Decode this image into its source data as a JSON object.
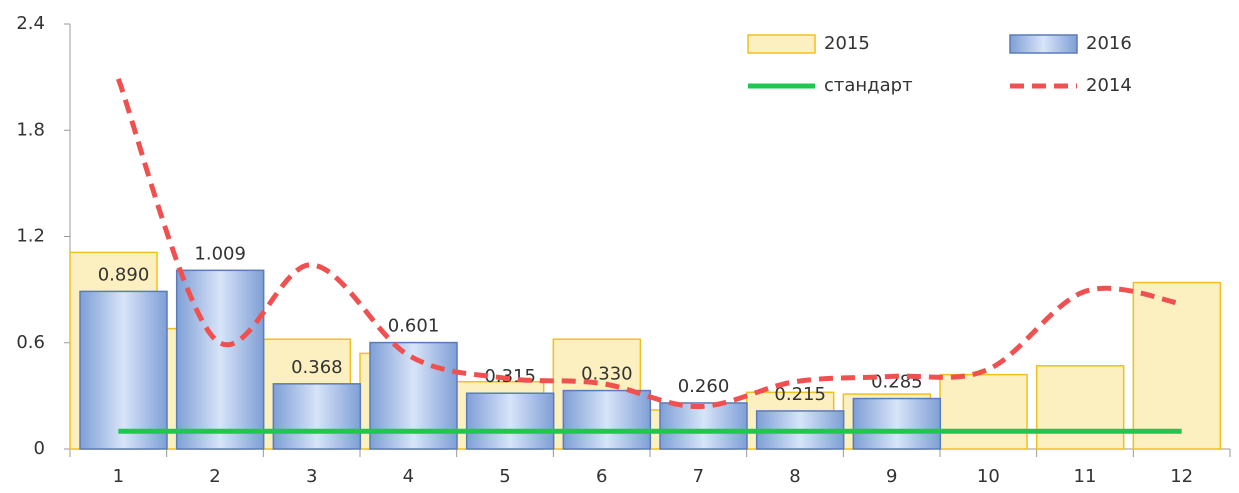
{
  "chart_data": {
    "type": "bar",
    "categories": [
      "1",
      "2",
      "3",
      "4",
      "5",
      "6",
      "7",
      "8",
      "9",
      "10",
      "11",
      "12"
    ],
    "series": [
      {
        "name": "2015",
        "type": "bar",
        "color": "#fdf0c0",
        "edge": "#f0c020",
        "values": [
          1.11,
          0.68,
          0.62,
          0.54,
          0.38,
          0.62,
          0.22,
          0.32,
          0.31,
          0.42,
          0.47,
          0.94
        ]
      },
      {
        "name": "2016",
        "type": "bar",
        "color": "#a9c4ee",
        "edge": "#5a7cb8",
        "values": [
          0.89,
          1.009,
          0.368,
          0.601,
          0.315,
          0.33,
          0.26,
          0.215,
          0.285,
          null,
          null,
          null
        ],
        "value_labels": [
          "0.890",
          "1.009",
          "0.368",
          "0.601",
          "0.315",
          "0.330",
          "0.260",
          "0.215",
          "0.285",
          null,
          null,
          null
        ]
      },
      {
        "name": "стандарт",
        "type": "line",
        "color": "#1ec850",
        "values": [
          0.1,
          0.1,
          0.1,
          0.1,
          0.1,
          0.1,
          0.1,
          0.1,
          0.1,
          0.1,
          0.1,
          0.1
        ]
      },
      {
        "name": "2014",
        "type": "smooth",
        "color": "#f05050",
        "dashed": true,
        "values": [
          2.09,
          0.62,
          1.04,
          0.53,
          0.4,
          0.37,
          0.24,
          0.38,
          0.41,
          0.45,
          0.89,
          0.82
        ]
      }
    ],
    "ylim": [
      0,
      2.4
    ],
    "yticks": [
      0,
      0.6,
      1.2,
      1.8,
      2.4
    ],
    "grid": false,
    "legend": "top-right"
  }
}
